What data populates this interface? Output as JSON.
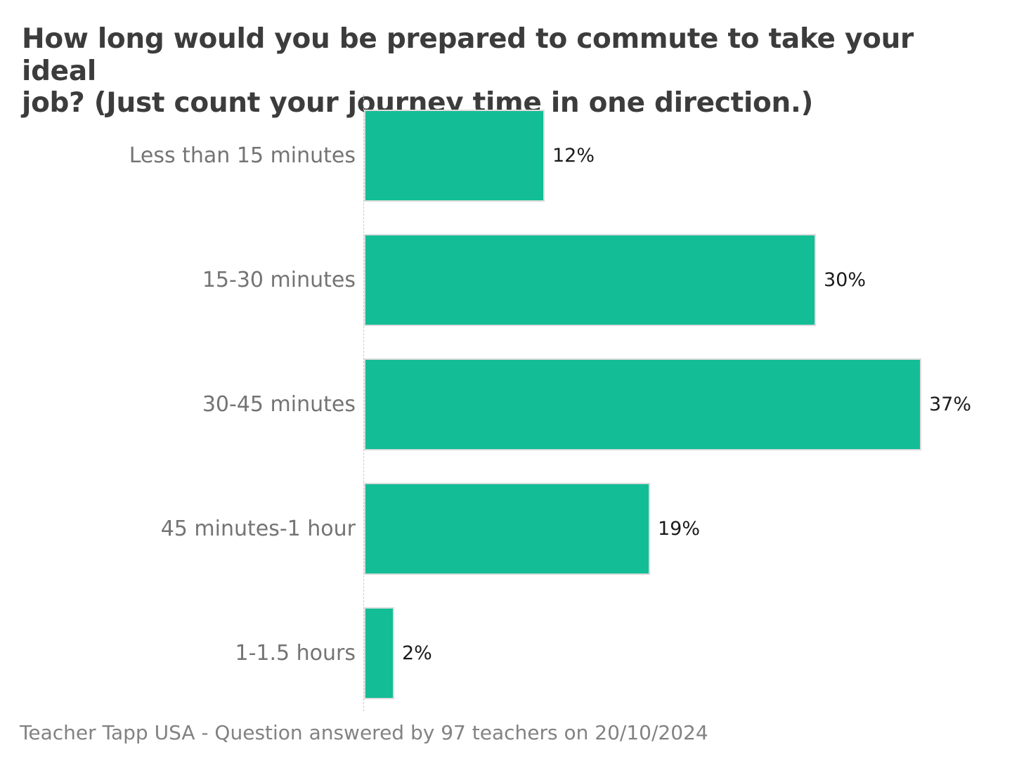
{
  "title_display": "How long would you be prepared to commute to take your ideal\njob? (Just count your journey time in one direction.)",
  "footer": "Teacher Tapp USA - Question answered by 97 teachers on 20/10/2024",
  "colors": {
    "bar": "#13bd95",
    "bar_border": "#dcdcdc",
    "title": "#3c3c3c",
    "category": "#747474",
    "value": "#1a1a1a",
    "footer": "#828282",
    "baseline": "#cccccc"
  },
  "chart_data": {
    "type": "bar",
    "orientation": "horizontal",
    "title": "How long would you be prepared to commute to take your ideal job? (Just count your journey time in one direction.)",
    "categories": [
      "Less than 15 minutes",
      "15-30 minutes",
      "30-45 minutes",
      "45 minutes-1 hour",
      "1-1.5 hours"
    ],
    "values": [
      12,
      30,
      37,
      19,
      2
    ],
    "value_labels": [
      "12%",
      "30%",
      "37%",
      "19%",
      "2%"
    ],
    "xlabel": "",
    "ylabel": "",
    "xlim": [
      0,
      40
    ],
    "grid": false,
    "legend_position": "none",
    "annotations": "percentage labels at end of each bar, dashed zero baseline"
  }
}
